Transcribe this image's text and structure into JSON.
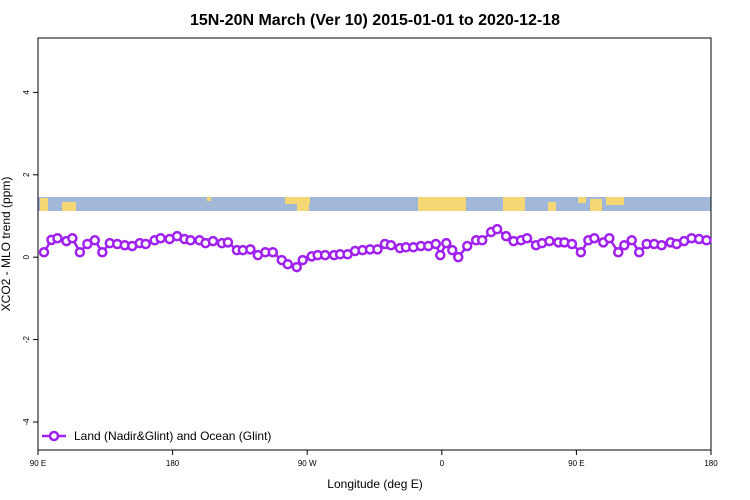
{
  "chart_data": {
    "type": "line",
    "title": "15N-20N March (Ver 10)   2015-01-01 to 2020-12-18",
    "x_label": "Longitude (deg E)",
    "y_label": "XCO2 - MLO trend (ppm)",
    "xlim": [
      90,
      540
    ],
    "ylim": [
      -4.68,
      5.32
    ],
    "xticks": [
      {
        "value": 90,
        "label": "90 E"
      },
      {
        "value": 180,
        "label": "180"
      },
      {
        "value": 270,
        "label": "90 W"
      },
      {
        "value": 360,
        "label": "0"
      },
      {
        "value": 450,
        "label": "90 E"
      },
      {
        "value": 540,
        "label": "180"
      }
    ],
    "yticks": [
      4,
      2,
      0,
      -2,
      -4
    ],
    "legend": "bottom-left",
    "x": [
      94,
      99,
      103,
      109,
      113,
      118,
      123,
      128,
      133,
      138,
      143,
      148,
      153,
      158,
      162,
      168,
      172,
      178,
      183,
      188,
      192,
      198,
      202,
      207,
      213,
      217,
      223,
      227,
      232,
      237,
      242,
      247,
      253,
      257,
      263,
      267,
      273,
      277,
      282,
      288,
      292,
      297,
      302,
      307,
      312,
      317,
      322,
      326,
      332,
      336,
      341,
      346,
      351,
      356,
      359,
      363,
      367,
      371,
      377,
      383,
      387,
      393,
      397,
      403,
      408,
      413,
      417,
      423,
      427,
      432,
      438,
      442,
      447,
      453,
      458,
      462,
      468,
      472,
      478,
      482,
      487,
      492,
      497,
      502,
      507,
      513,
      517,
      522,
      527,
      532,
      537
    ],
    "series": [
      {
        "name": "Land (Nadir&Glint) and Ocean (Glint)",
        "color": "#a020f0",
        "values": [
          0.12,
          0.42,
          0.46,
          0.39,
          0.46,
          0.12,
          0.32,
          0.41,
          0.12,
          0.34,
          0.32,
          0.29,
          0.27,
          0.34,
          0.32,
          0.41,
          0.46,
          0.44,
          0.51,
          0.44,
          0.41,
          0.41,
          0.34,
          0.39,
          0.34,
          0.36,
          0.17,
          0.17,
          0.19,
          0.05,
          0.12,
          0.12,
          -0.07,
          -0.17,
          -0.24,
          -0.07,
          0.02,
          0.05,
          0.05,
          0.05,
          0.07,
          0.07,
          0.15,
          0.17,
          0.19,
          0.19,
          0.32,
          0.29,
          0.22,
          0.24,
          0.24,
          0.27,
          0.27,
          0.32,
          0.05,
          0.34,
          0.17,
          0.0,
          0.27,
          0.41,
          0.41,
          0.61,
          0.68,
          0.51,
          0.39,
          0.41,
          0.46,
          0.29,
          0.34,
          0.39,
          0.36,
          0.36,
          0.32,
          0.12,
          0.41,
          0.46,
          0.36,
          0.46,
          0.12,
          0.29,
          0.41,
          0.12,
          0.32,
          0.32,
          0.29,
          0.36,
          0.32,
          0.39,
          0.46,
          0.44,
          0.41
        ]
      }
    ]
  }
}
